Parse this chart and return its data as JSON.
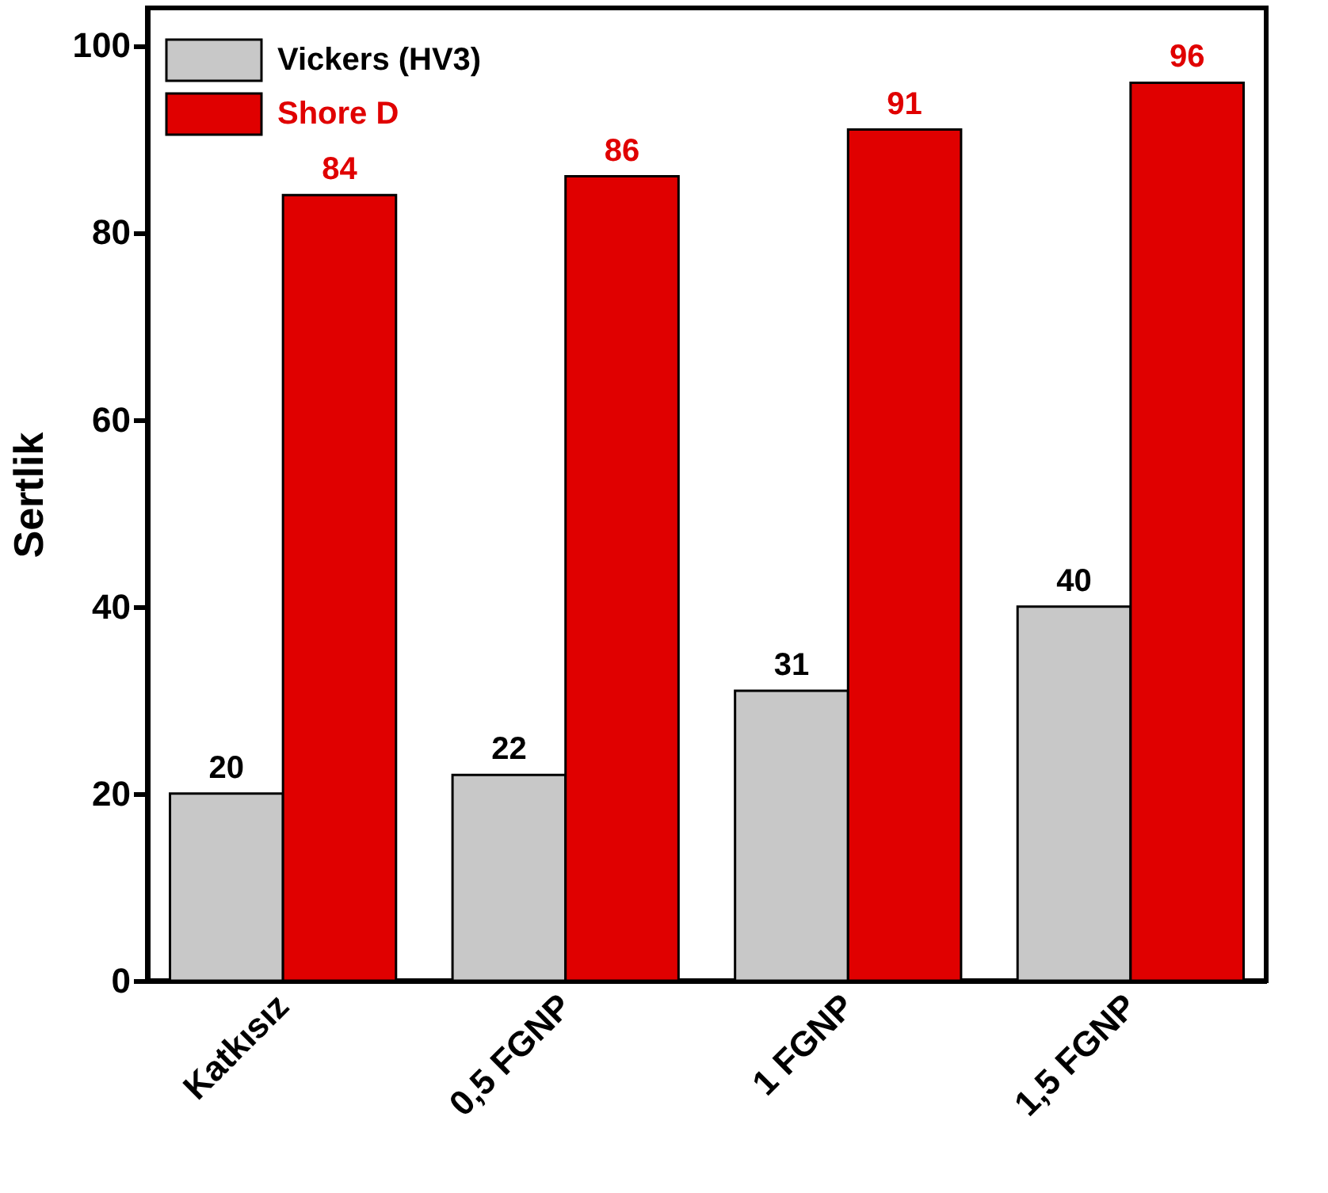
{
  "chart_data": {
    "type": "bar",
    "ylabel": "Sertlik",
    "categories": [
      "Katkısız",
      "0,5 FGNP",
      "1 FGNP",
      "1,5 FGNP"
    ],
    "series": [
      {
        "name": "Vickers (HV3)",
        "color": "#c8c8c8",
        "values": [
          20,
          22,
          31,
          40
        ]
      },
      {
        "name": "Shore D",
        "color": "#e00000",
        "values": [
          84,
          86,
          91,
          96
        ]
      }
    ],
    "ylim": [
      0,
      104
    ],
    "yticks": [
      0,
      20,
      40,
      60,
      80,
      100
    ],
    "data_labels": true,
    "legend": "top left",
    "grid": false
  }
}
